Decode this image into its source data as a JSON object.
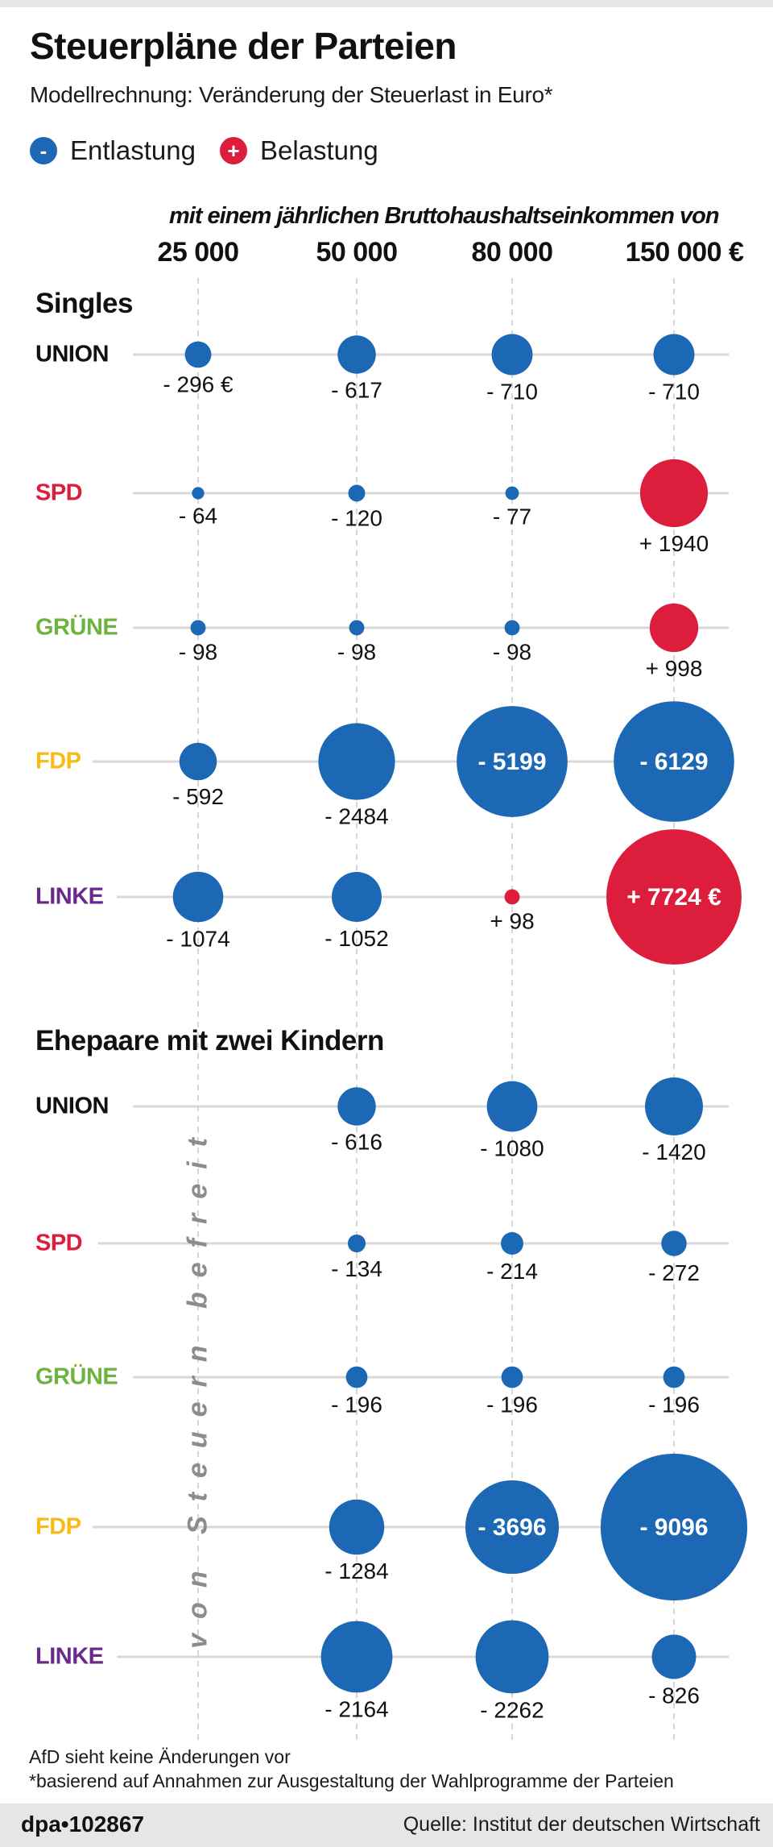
{
  "header": {
    "title": "Steuerpläne der Parteien",
    "subtitle": "Modellrechnung: Veränderung der Steuerlast in Euro*"
  },
  "legend": [
    {
      "symbol": "-",
      "label": "Entlastung",
      "color": "#1c68b5",
      "icon": "minus-circle-icon"
    },
    {
      "symbol": "+",
      "label": "Belastung",
      "color": "#dc1e3c",
      "icon": "plus-circle-icon"
    }
  ],
  "footnotes": {
    "afd": "AfD sieht keine Änderungen vor",
    "basis": "*basierend auf Annahmen zur Ausgestaltung der Wahlprogramme der Parteien"
  },
  "footer": {
    "brand": "dpa•102867",
    "source": "Quelle: Institut der deutschen Wirtschaft"
  },
  "colors": {
    "relief": "#1c68b5",
    "burden": "#dc1e3c",
    "union": "#111111",
    "spd": "#dc1e3c",
    "gruene": "#6db33f",
    "fdp": "#f6bb14",
    "linke": "#6b2a8a"
  },
  "chart_data": {
    "type": "bubble-grid",
    "title": "Steuerpläne der Parteien",
    "subtitle": "Modellrechnung: Veränderung der Steuerlast in Euro*",
    "x_caption": "mit einem jährlichen Bruttohaushaltseinkommen von",
    "categories": [
      "25 000",
      "50 000",
      "80 000",
      "150 000 €"
    ],
    "legend": [
      "Entlastung (negative)",
      "Belastung (positive)"
    ],
    "exempt_note": "von Steuern befreit",
    "groups": [
      {
        "name": "Singles",
        "series": [
          {
            "party": "UNION",
            "color_key": "union",
            "values": [
              -296,
              -617,
              -710,
              -710
            ],
            "labels": [
              "- 296 €",
              "- 617",
              "- 710",
              "- 710"
            ],
            "label_inside": [
              false,
              false,
              false,
              false
            ]
          },
          {
            "party": "SPD",
            "color_key": "spd",
            "values": [
              -64,
              -120,
              -77,
              1940
            ],
            "labels": [
              "- 64",
              "- 120",
              "- 77",
              "+ 1940"
            ],
            "label_inside": [
              false,
              false,
              false,
              false
            ]
          },
          {
            "party": "GRÜNE",
            "color_key": "gruene",
            "values": [
              -98,
              -98,
              -98,
              998
            ],
            "labels": [
              "- 98",
              "- 98",
              "- 98",
              "+ 998"
            ],
            "label_inside": [
              false,
              false,
              false,
              false
            ]
          },
          {
            "party": "FDP",
            "color_key": "fdp",
            "values": [
              -592,
              -2484,
              -5199,
              -6129
            ],
            "labels": [
              "- 592",
              "- 2484",
              "- 5199",
              "- 6129"
            ],
            "label_inside": [
              false,
              false,
              true,
              true
            ]
          },
          {
            "party": "LINKE",
            "color_key": "linke",
            "values": [
              -1074,
              -1052,
              98,
              7724
            ],
            "labels": [
              "- 1074",
              "- 1052",
              "+ 98",
              "+ 7724 €"
            ],
            "label_inside": [
              false,
              false,
              false,
              true
            ]
          }
        ]
      },
      {
        "name": "Ehepaare mit zwei Kindern",
        "series": [
          {
            "party": "UNION",
            "color_key": "union",
            "values": [
              null,
              -616,
              -1080,
              -1420
            ],
            "labels": [
              "",
              "- 616",
              "- 1080",
              "- 1420"
            ],
            "label_inside": [
              false,
              false,
              false,
              false
            ]
          },
          {
            "party": "SPD",
            "color_key": "spd",
            "values": [
              null,
              -134,
              -214,
              -272
            ],
            "labels": [
              "",
              "- 134",
              "- 214",
              "- 272"
            ],
            "label_inside": [
              false,
              false,
              false,
              false
            ]
          },
          {
            "party": "GRÜNE",
            "color_key": "gruene",
            "values": [
              null,
              -196,
              -196,
              -196
            ],
            "labels": [
              "",
              "- 196",
              "- 196",
              "- 196"
            ],
            "label_inside": [
              false,
              false,
              false,
              false
            ]
          },
          {
            "party": "FDP",
            "color_key": "fdp",
            "values": [
              null,
              -1284,
              -3696,
              -9096
            ],
            "labels": [
              "",
              "- 1284",
              "- 3696",
              "- 9096"
            ],
            "label_inside": [
              false,
              false,
              true,
              true
            ]
          },
          {
            "party": "LINKE",
            "color_key": "linke",
            "values": [
              null,
              -2164,
              -2262,
              -826
            ],
            "labels": [
              "",
              "- 2164",
              "- 2262",
              "- 826"
            ],
            "label_inside": [
              false,
              false,
              false,
              false
            ]
          }
        ]
      }
    ]
  }
}
